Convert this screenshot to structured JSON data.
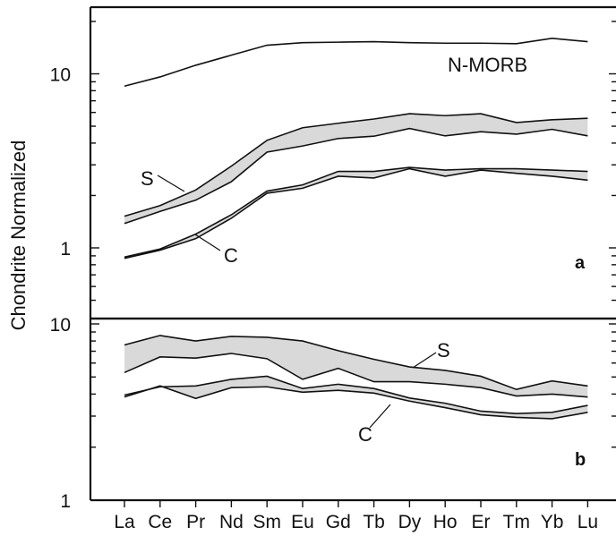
{
  "chart_data": {
    "type": "line",
    "ylabel": "Chondrite Normalized",
    "y_scale": "log",
    "grid": false,
    "categories": [
      "La",
      "Ce",
      "Pr",
      "Nd",
      "Sm",
      "Eu",
      "Gd",
      "Tb",
      "Dy",
      "Ho",
      "Er",
      "Tm",
      "Yb",
      "Lu"
    ],
    "panels": [
      {
        "id": "a",
        "label": "a",
        "ylim": [
          0.5,
          20
        ],
        "yticks": [
          {
            "value": 1,
            "label": "1"
          },
          {
            "value": 10,
            "label": "10"
          }
        ],
        "series": [
          {
            "name": "N-MORB",
            "values": [
              8.5,
              9.6,
              11.2,
              12.8,
              14.6,
              15.1,
              15.2,
              15.3,
              15.1,
              15.0,
              15.0,
              14.9,
              16.0,
              15.3
            ]
          },
          {
            "name": "S",
            "values_upper": [
              1.52,
              1.75,
              2.15,
              2.95,
              4.15,
              4.9,
              5.2,
              5.5,
              5.9,
              5.75,
              5.9,
              5.25,
              5.45,
              5.55
            ],
            "values_lower": [
              1.38,
              1.62,
              1.88,
              2.4,
              3.55,
              3.85,
              4.25,
              4.38,
              4.85,
              4.4,
              4.65,
              4.5,
              4.8,
              4.4
            ]
          },
          {
            "name": "C",
            "values_upper": [
              0.885,
              0.985,
              1.2,
              1.55,
              2.12,
              2.3,
              2.75,
              2.75,
              2.9,
              2.8,
              2.85,
              2.85,
              2.8,
              2.75
            ],
            "values_lower": [
              0.87,
              0.97,
              1.13,
              1.48,
              2.06,
              2.2,
              2.58,
              2.52,
              2.85,
              2.58,
              2.8,
              2.68,
              2.58,
              2.45
            ]
          }
        ],
        "annotations": [
          {
            "text": "N-MORB"
          },
          {
            "text": "S"
          },
          {
            "text": "C"
          }
        ]
      },
      {
        "id": "b",
        "label": "b",
        "ylim": [
          1,
          11
        ],
        "yticks": [
          {
            "value": 1,
            "label": "1"
          },
          {
            "value": 10,
            "label": "10"
          }
        ],
        "series": [
          {
            "name": "S",
            "values_upper": [
              7.6,
              8.6,
              8.0,
              8.5,
              8.4,
              8.0,
              7.05,
              6.3,
              5.7,
              5.45,
              5.05,
              4.25,
              4.75,
              4.45
            ],
            "values_lower": [
              5.3,
              6.5,
              6.4,
              6.8,
              6.35,
              4.85,
              5.6,
              4.7,
              4.7,
              4.55,
              4.35,
              3.9,
              4.0,
              3.85
            ]
          },
          {
            "name": "C",
            "values_upper": [
              3.95,
              4.4,
              4.45,
              4.85,
              5.05,
              4.3,
              4.55,
              4.3,
              3.8,
              3.55,
              3.2,
              3.1,
              3.15,
              3.45
            ],
            "values_lower": [
              3.85,
              4.45,
              3.78,
              4.35,
              4.4,
              4.1,
              4.2,
              4.05,
              3.65,
              3.35,
              3.05,
              2.95,
              2.9,
              3.15
            ]
          }
        ],
        "annotations": [
          {
            "text": "S"
          },
          {
            "text": "C"
          }
        ]
      }
    ]
  },
  "colors": {
    "band_fill": "#d9d9d9",
    "line": "#111111",
    "axis": "#111111",
    "background": "#ffffff"
  }
}
